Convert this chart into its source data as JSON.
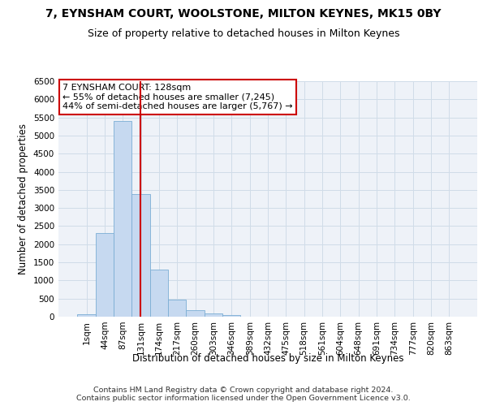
{
  "title": "7, EYNSHAM COURT, WOOLSTONE, MILTON KEYNES, MK15 0BY",
  "subtitle": "Size of property relative to detached houses in Milton Keynes",
  "xlabel": "Distribution of detached houses by size in Milton Keynes",
  "ylabel": "Number of detached properties",
  "footnote1": "Contains HM Land Registry data © Crown copyright and database right 2024.",
  "footnote2": "Contains public sector information licensed under the Open Government Licence v3.0.",
  "bar_labels": [
    "1sqm",
    "44sqm",
    "87sqm",
    "131sqm",
    "174sqm",
    "217sqm",
    "260sqm",
    "303sqm",
    "346sqm",
    "389sqm",
    "432sqm",
    "475sqm",
    "518sqm",
    "561sqm",
    "604sqm",
    "648sqm",
    "691sqm",
    "734sqm",
    "777sqm",
    "820sqm",
    "863sqm"
  ],
  "bar_values": [
    75,
    2300,
    5400,
    3380,
    1310,
    480,
    185,
    80,
    50,
    0,
    0,
    0,
    0,
    0,
    0,
    0,
    0,
    0,
    0,
    0,
    0
  ],
  "bar_color": "#c6d9f0",
  "bar_edge_color": "#7badd4",
  "grid_color": "#d0dce8",
  "annotation_box_color": "#cc0000",
  "property_line_x": 2.97,
  "annotation_text_line1": "7 EYNSHAM COURT: 128sqm",
  "annotation_text_line2": "← 55% of detached houses are smaller (7,245)",
  "annotation_text_line3": "44% of semi-detached houses are larger (5,767) →",
  "ylim": [
    0,
    6500
  ],
  "yticks": [
    0,
    500,
    1000,
    1500,
    2000,
    2500,
    3000,
    3500,
    4000,
    4500,
    5000,
    5500,
    6000,
    6500
  ],
  "title_fontsize": 10,
  "subtitle_fontsize": 9,
  "label_fontsize": 8.5,
  "tick_fontsize": 7.5,
  "annot_fontsize": 8,
  "footnote_fontsize": 6.8,
  "background_color": "#eef2f8"
}
